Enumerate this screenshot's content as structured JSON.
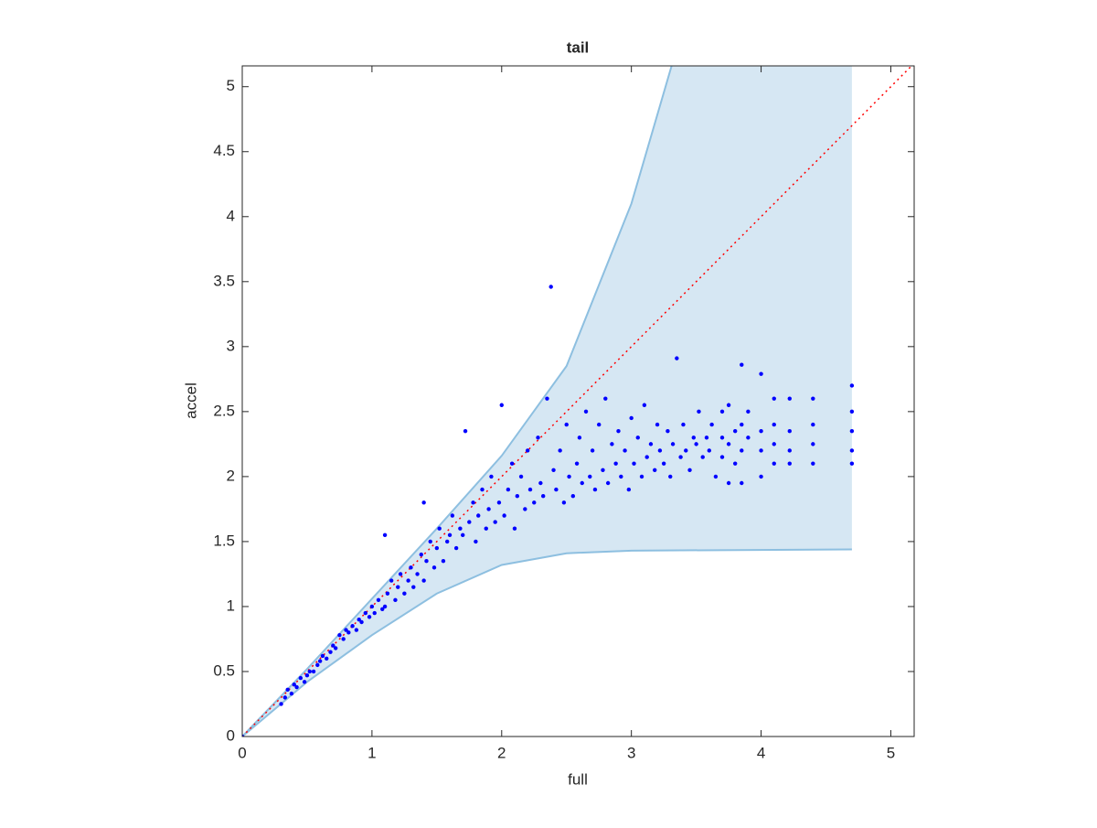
{
  "chart_data": {
    "type": "scatter",
    "title": "tail",
    "x_label": "full",
    "y_label": "accel",
    "xlim": [
      0,
      5.18
    ],
    "ylim": [
      0,
      5.16
    ],
    "xticks": [
      0,
      1,
      2,
      3,
      4,
      5
    ],
    "yticks": [
      0,
      0.5,
      1,
      1.5,
      2,
      2.5,
      3,
      3.5,
      4,
      4.5,
      5
    ],
    "band": {
      "color": "#d6e7f3",
      "edge_color": "#8dbfe0",
      "upper": {
        "x": [
          0,
          0.5,
          1,
          1.5,
          2,
          2.5,
          3,
          3.31,
          4.7
        ],
        "y": [
          0,
          0.52,
          1.06,
          1.6,
          2.16,
          2.85,
          4.1,
          5.16,
          5.16
        ]
      },
      "lower": {
        "x": [
          0,
          0.5,
          1,
          1.5,
          2,
          2.5,
          3,
          4.7
        ],
        "y": [
          0,
          0.42,
          0.78,
          1.1,
          1.32,
          1.41,
          1.43,
          1.44
        ]
      }
    },
    "reference_line": {
      "color": "#ff0000",
      "x": [
        0,
        5.17
      ],
      "y": [
        0,
        5.17
      ]
    },
    "points": {
      "color": "#0000ff",
      "x": [
        0.3,
        0.33,
        0.35,
        0.38,
        0.4,
        0.42,
        0.45,
        0.48,
        0.5,
        0.52,
        0.55,
        0.58,
        0.6,
        0.62,
        0.65,
        0.68,
        0.7,
        0.72,
        0.75,
        0.78,
        0.8,
        0.82,
        0.85,
        0.88,
        0.9,
        0.92,
        0.95,
        0.98,
        1.0,
        1.02,
        1.05,
        1.08,
        1.1,
        1.12,
        1.15,
        1.18,
        1.2,
        1.22,
        1.25,
        1.28,
        1.3,
        1.32,
        1.35,
        1.38,
        1.4,
        1.42,
        1.45,
        1.48,
        1.5,
        1.52,
        1.55,
        1.58,
        1.6,
        1.62,
        1.65,
        1.68,
        1.7,
        1.72,
        1.75,
        1.78,
        1.8,
        1.82,
        1.85,
        1.88,
        1.9,
        1.92,
        1.95,
        1.98,
        2.0,
        2.02,
        2.05,
        2.08,
        2.1,
        2.12,
        2.15,
        2.18,
        2.2,
        2.22,
        2.25,
        2.28,
        2.3,
        2.32,
        2.35,
        2.38,
        2.4,
        2.42,
        2.45,
        2.48,
        2.5,
        2.52,
        2.55,
        2.58,
        2.6,
        2.62,
        2.65,
        2.68,
        2.7,
        2.72,
        2.75,
        2.78,
        2.8,
        2.82,
        2.85,
        2.88,
        2.9,
        2.92,
        2.95,
        2.98,
        3.0,
        3.02,
        3.05,
        3.08,
        3.1,
        3.12,
        3.15,
        3.18,
        3.2,
        3.22,
        3.25,
        3.28,
        3.3,
        3.32,
        3.35,
        3.38,
        3.4,
        3.42,
        3.45,
        3.48,
        3.5,
        3.52,
        3.55,
        3.58,
        3.6,
        3.62,
        3.65,
        3.7,
        3.7,
        3.7,
        3.75,
        3.75,
        3.75,
        3.8,
        3.8,
        3.85,
        3.85,
        3.85,
        3.85,
        3.9,
        3.9,
        4.0,
        4.0,
        4.0,
        4.0,
        4.1,
        4.1,
        4.1,
        4.1,
        4.22,
        4.22,
        4.22,
        4.22,
        4.4,
        4.4,
        4.4,
        4.4,
        4.7,
        4.7,
        4.7,
        4.7,
        4.7,
        1.1,
        1.4,
        0.0
      ],
      "y": [
        0.25,
        0.3,
        0.36,
        0.33,
        0.4,
        0.38,
        0.45,
        0.42,
        0.47,
        0.5,
        0.5,
        0.55,
        0.58,
        0.62,
        0.6,
        0.65,
        0.7,
        0.68,
        0.78,
        0.75,
        0.82,
        0.8,
        0.85,
        0.82,
        0.9,
        0.88,
        0.95,
        0.92,
        1.0,
        0.95,
        1.05,
        0.98,
        1.0,
        1.1,
        1.2,
        1.05,
        1.15,
        1.25,
        1.1,
        1.2,
        1.3,
        1.15,
        1.25,
        1.4,
        1.2,
        1.35,
        1.5,
        1.3,
        1.45,
        1.6,
        1.35,
        1.5,
        1.55,
        1.7,
        1.45,
        1.6,
        1.55,
        2.35,
        1.65,
        1.8,
        1.5,
        1.7,
        1.9,
        1.6,
        1.75,
        2.0,
        1.65,
        1.8,
        2.55,
        1.7,
        1.9,
        2.1,
        1.6,
        1.85,
        2.0,
        1.75,
        2.2,
        1.9,
        1.8,
        2.3,
        1.95,
        1.85,
        2.6,
        3.46,
        2.05,
        1.9,
        2.2,
        1.8,
        2.4,
        2.0,
        1.85,
        2.1,
        2.3,
        1.95,
        2.5,
        2.0,
        2.2,
        1.9,
        2.4,
        2.05,
        2.6,
        1.95,
        2.25,
        2.1,
        2.35,
        2.0,
        2.2,
        1.9,
        2.45,
        2.1,
        2.3,
        2.0,
        2.55,
        2.15,
        2.25,
        2.05,
        2.4,
        2.2,
        2.1,
        2.35,
        2.0,
        2.25,
        2.91,
        2.15,
        2.4,
        2.2,
        2.05,
        2.3,
        2.25,
        2.5,
        2.15,
        2.3,
        2.2,
        2.4,
        2.0,
        2.3,
        2.5,
        2.15,
        2.25,
        2.55,
        1.95,
        2.35,
        2.1,
        2.86,
        2.4,
        2.2,
        1.95,
        2.3,
        2.5,
        2.79,
        2.35,
        2.2,
        2.0,
        2.6,
        2.4,
        2.25,
        2.1,
        2.6,
        2.35,
        2.2,
        2.1,
        2.6,
        2.4,
        2.25,
        2.1,
        2.7,
        2.5,
        2.35,
        2.2,
        2.1,
        1.55,
        1.8,
        0.0
      ]
    }
  }
}
